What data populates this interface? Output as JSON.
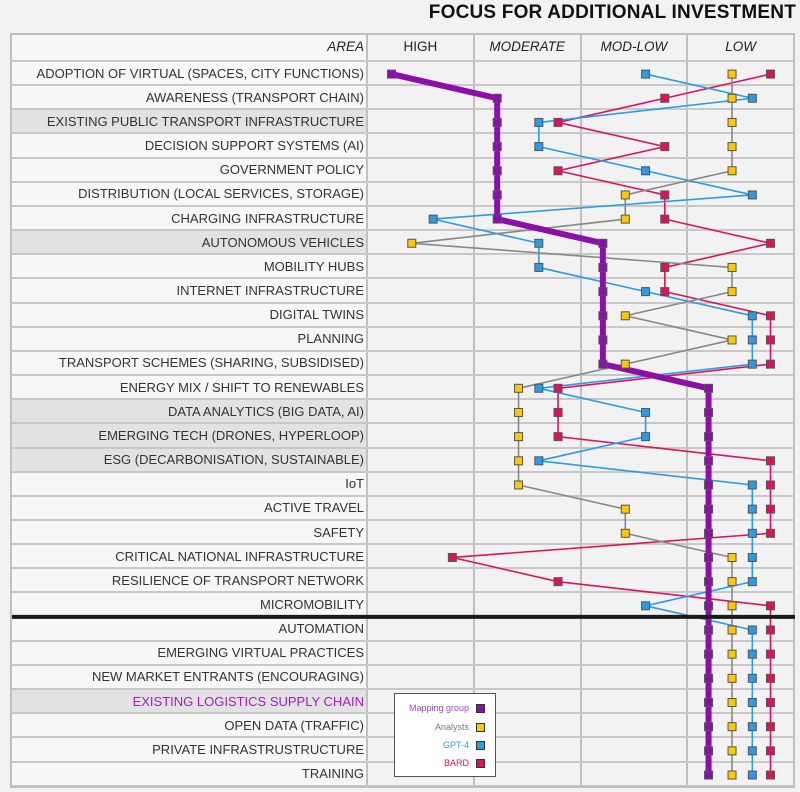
{
  "chart_data": {
    "type": "line",
    "title": "FOCUS FOR ADDITIONAL INVESTMENT",
    "area_header": "AREA",
    "level_columns": [
      "HIGH",
      "MODERATE",
      "MOD-LOW",
      "LOW"
    ],
    "level_scale_note": "",
    "areas": [
      "ADOPTION OF VIRTUAL (SPACES, CITY FUNCTIONS)",
      "AWARENESS (TRANSPORT CHAIN)",
      "EXISTING PUBLIC TRANSPORT INFRASTRUCTURE",
      "DECISION SUPPORT SYSTEMS (AI)",
      "GOVERNMENT POLICY",
      "DISTRIBUTION (LOCAL SERVICES, STORAGE)",
      "CHARGING INFRASTRUCTURE",
      "AUTONOMOUS VEHICLES",
      "MOBILITY HUBS",
      "INTERNET INFRASTRUCTURE",
      "DIGITAL TWINS",
      "PLANNING",
      "TRANSPORT SCHEMES (SHARING, SUBSIDISED)",
      "ENERGY MIX / SHIFT TO RENEWABLES",
      "DATA ANALYTICS (BIG DATA, AI)",
      "EMERGING TECH (DRONES, HYPERLOOP)",
      "ESG (DECARBONISATION, SUSTAINABLE)",
      "IoT",
      "ACTIVE TRAVEL",
      "SAFETY",
      "CRITICAL NATIONAL INFRASTRUCTURE",
      "RESILIENCE OF TRANSPORT NETWORK",
      "MICROMOBILITY",
      "AUTOMATION",
      "EMERGING VIRTUAL PRACTICES",
      "NEW MARKET ENTRANTS (ENCOURAGING)",
      "EXISTING LOGISTICS SUPPLY CHAIN",
      "OPEN DATA (TRAFFIC)",
      "PRIVATE INFRASTRUSTRUCTURE",
      "TRAINING"
    ],
    "highlighted_areas": [
      2,
      7,
      14,
      15,
      16,
      26
    ],
    "purple_label_area": 26,
    "separator_after_area": 22,
    "x_axis": "level position, 1=HIGH center, 2=MODERATE, 3=MOD-LOW, 4=LOW center",
    "series": [
      {
        "name": "Mapping group",
        "color": "#8b0fa8",
        "values": [
          0.72,
          1.71,
          1.71,
          1.71,
          1.71,
          1.71,
          1.71,
          2.7,
          2.7,
          2.7,
          2.7,
          2.7,
          2.7,
          3.69,
          3.69,
          3.69,
          3.69,
          3.69,
          3.69,
          3.69,
          3.69,
          3.69,
          3.69,
          3.69,
          3.69,
          3.69,
          3.69,
          3.69,
          3.69,
          3.69
        ]
      },
      {
        "name": "Analysts",
        "color": "#ffc800",
        "line_color": "#888888",
        "values": [
          3.91,
          3.91,
          3.91,
          3.91,
          3.91,
          2.91,
          2.91,
          0.91,
          3.91,
          3.91,
          2.91,
          3.91,
          2.91,
          1.91,
          1.91,
          1.91,
          1.91,
          1.91,
          2.91,
          2.91,
          3.91,
          3.91,
          3.91,
          3.91,
          3.91,
          3.91,
          3.91,
          3.91,
          3.91,
          3.91
        ]
      },
      {
        "name": "GPT-4",
        "color": "#2b9be8",
        "values": [
          3.1,
          4.1,
          2.1,
          2.1,
          3.1,
          4.1,
          1.11,
          2.1,
          2.1,
          3.1,
          4.1,
          4.1,
          4.1,
          2.1,
          3.1,
          3.1,
          2.1,
          4.1,
          4.1,
          4.1,
          4.1,
          4.1,
          3.1,
          4.1,
          4.1,
          4.1,
          4.1,
          4.1,
          4.1,
          4.1
        ]
      },
      {
        "name": "BARD",
        "color": "#e0105e",
        "values": [
          4.27,
          3.28,
          2.28,
          3.28,
          2.28,
          3.28,
          3.28,
          4.27,
          3.28,
          3.28,
          4.27,
          4.27,
          4.27,
          2.28,
          2.28,
          2.28,
          4.27,
          4.27,
          4.27,
          4.27,
          1.29,
          2.28,
          4.27,
          4.27,
          4.27,
          4.27,
          4.27,
          4.27,
          4.27,
          4.27
        ]
      }
    ],
    "legend_placement": "bottom-left of plot area",
    "grid": true
  }
}
